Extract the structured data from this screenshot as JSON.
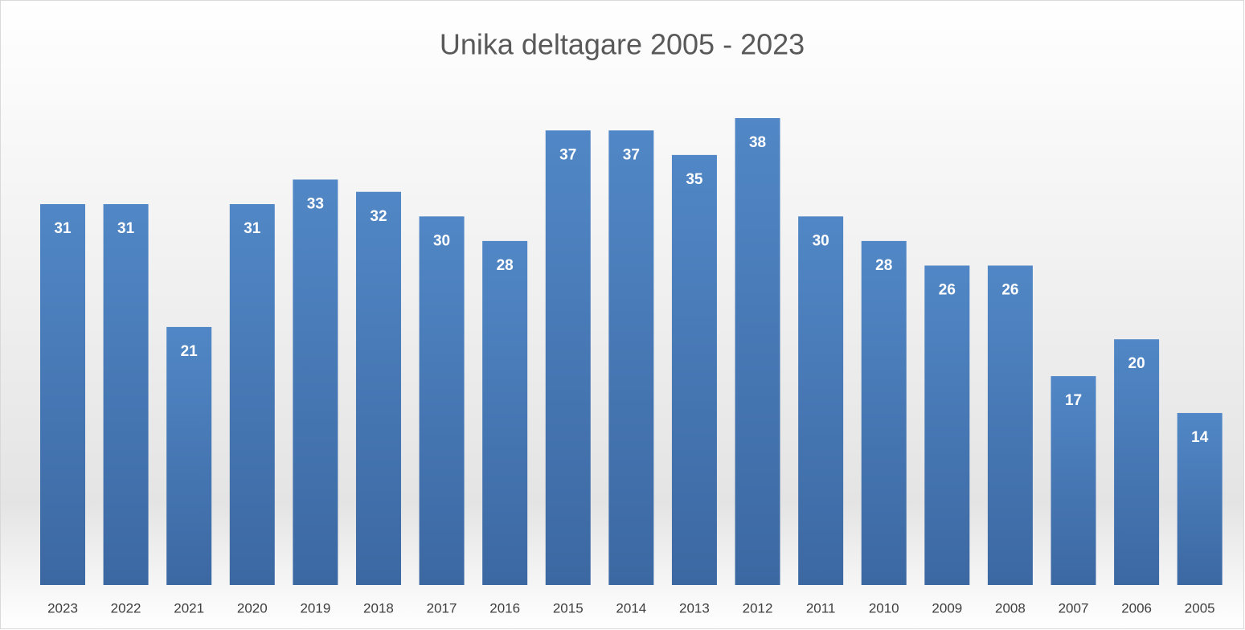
{
  "chart_data": {
    "type": "bar",
    "title": "Unika deltagare 2005 - 2023",
    "categories": [
      "2023",
      "2022",
      "2021",
      "2020",
      "2019",
      "2018",
      "2017",
      "2016",
      "2015",
      "2014",
      "2013",
      "2012",
      "2011",
      "2010",
      "2009",
      "2008",
      "2007",
      "2006",
      "2005"
    ],
    "values": [
      31,
      31,
      21,
      31,
      33,
      32,
      30,
      28,
      37,
      37,
      35,
      38,
      30,
      28,
      26,
      26,
      17,
      20,
      14
    ],
    "color": "#4a7ab8"
  }
}
